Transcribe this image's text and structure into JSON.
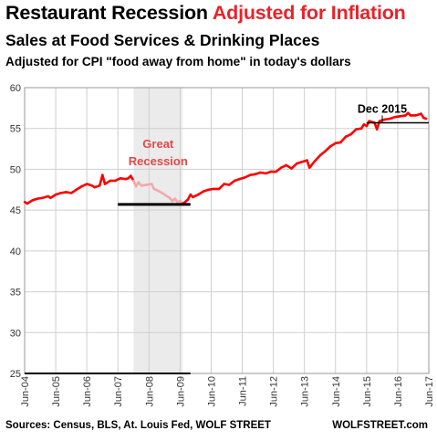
{
  "title": {
    "part1": "Restaurant Recession ",
    "part2": "Adjusted for Inflation"
  },
  "subtitle": "Sales at Food Services & Drinking Places",
  "subtitle2": "Adjusted for CPI \"food away from home\"  in today's dollars",
  "footer": {
    "source": "Sources: Census, BLS, At. Louis Fed, WOLF STREET",
    "brand": "WOLFSTREET.com"
  },
  "colors": {
    "accent": "#e8232a",
    "line": "#ff0000",
    "line_recession": "#f4a8a8",
    "recession_shade": "#ebebeb",
    "recession_label": "#e04a4a"
  },
  "chart_data": {
    "type": "line",
    "ylim": [
      25,
      60
    ],
    "yticks": [
      25,
      30,
      35,
      40,
      45,
      50,
      55,
      60
    ],
    "xlim": [
      2004.417,
      2017.417
    ],
    "xticks": [
      {
        "label": "Jun-04",
        "x": 2004.417
      },
      {
        "label": "Jun-05",
        "x": 2005.417
      },
      {
        "label": "Jun-06",
        "x": 2006.417
      },
      {
        "label": "Jun-07",
        "x": 2007.417
      },
      {
        "label": "Jun-08",
        "x": 2008.417
      },
      {
        "label": "Jun-09",
        "x": 2009.417
      },
      {
        "label": "Jun-10",
        "x": 2010.417
      },
      {
        "label": "Jun-11",
        "x": 2011.417
      },
      {
        "label": "Jun-12",
        "x": 2012.417
      },
      {
        "label": "Jun-13",
        "x": 2013.417
      },
      {
        "label": "Jun-14",
        "x": 2014.417
      },
      {
        "label": "Jun-15",
        "x": 2015.417
      },
      {
        "label": "Jun-16",
        "x": 2016.417
      },
      {
        "label": "Jun-17",
        "x": 2017.417
      }
    ],
    "grid": true,
    "recession": {
      "start": 2007.92,
      "end": 2009.5,
      "label_line1": "Great",
      "label_line2": "Recession"
    },
    "reference_lines": [
      {
        "y": 45.7,
        "x_start": 2007.417,
        "x_end": 2009.75
      },
      {
        "y": 55.7,
        "x_start": 2015.42,
        "x_end": 2017.417
      }
    ],
    "annotation": {
      "text": "Dec 2015",
      "x": 2015.92,
      "y": 55.7
    },
    "series": [
      {
        "points": [
          [
            2004.42,
            46.0
          ],
          [
            2004.5,
            45.8
          ],
          [
            2004.67,
            46.2
          ],
          [
            2004.83,
            46.4
          ],
          [
            2005.0,
            46.5
          ],
          [
            2005.17,
            46.7
          ],
          [
            2005.25,
            46.5
          ],
          [
            2005.42,
            46.9
          ],
          [
            2005.58,
            47.1
          ],
          [
            2005.75,
            47.2
          ],
          [
            2005.92,
            47.1
          ],
          [
            2006.08,
            47.5
          ],
          [
            2006.25,
            47.9
          ],
          [
            2006.42,
            48.2
          ],
          [
            2006.58,
            48.0
          ],
          [
            2006.67,
            47.8
          ],
          [
            2006.83,
            48.0
          ],
          [
            2006.92,
            49.3
          ],
          [
            2007.0,
            48.2
          ],
          [
            2007.17,
            48.6
          ],
          [
            2007.33,
            48.6
          ],
          [
            2007.5,
            48.9
          ],
          [
            2007.67,
            48.8
          ],
          [
            2007.75,
            48.9
          ],
          [
            2007.83,
            49.2
          ],
          [
            2007.92,
            48.6
          ],
          [
            2008.0,
            47.9
          ],
          [
            2008.08,
            48.4
          ],
          [
            2008.17,
            48.0
          ],
          [
            2008.33,
            48.1
          ],
          [
            2008.5,
            48.2
          ],
          [
            2008.58,
            47.6
          ],
          [
            2008.75,
            47.3
          ],
          [
            2008.92,
            46.9
          ],
          [
            2009.08,
            46.5
          ],
          [
            2009.17,
            46.1
          ],
          [
            2009.25,
            46.4
          ],
          [
            2009.33,
            46.0
          ],
          [
            2009.42,
            46.1
          ],
          [
            2009.5,
            45.8
          ],
          [
            2009.58,
            46.0
          ],
          [
            2009.67,
            46.3
          ],
          [
            2009.75,
            46.9
          ],
          [
            2009.83,
            46.6
          ],
          [
            2010.0,
            46.9
          ],
          [
            2010.17,
            47.3
          ],
          [
            2010.33,
            47.5
          ],
          [
            2010.5,
            47.6
          ],
          [
            2010.67,
            47.6
          ],
          [
            2010.83,
            48.2
          ],
          [
            2011.0,
            48.1
          ],
          [
            2011.17,
            48.6
          ],
          [
            2011.33,
            48.8
          ],
          [
            2011.5,
            49.0
          ],
          [
            2011.67,
            49.3
          ],
          [
            2011.83,
            49.4
          ],
          [
            2012.0,
            49.6
          ],
          [
            2012.17,
            49.5
          ],
          [
            2012.33,
            49.7
          ],
          [
            2012.5,
            49.7
          ],
          [
            2012.67,
            50.2
          ],
          [
            2012.83,
            50.5
          ],
          [
            2013.0,
            50.1
          ],
          [
            2013.17,
            50.7
          ],
          [
            2013.33,
            50.9
          ],
          [
            2013.5,
            51.1
          ],
          [
            2013.58,
            50.2
          ],
          [
            2013.75,
            51.0
          ],
          [
            2013.92,
            51.7
          ],
          [
            2014.08,
            52.2
          ],
          [
            2014.25,
            52.8
          ],
          [
            2014.42,
            53.2
          ],
          [
            2014.58,
            53.3
          ],
          [
            2014.75,
            54.0
          ],
          [
            2014.92,
            54.3
          ],
          [
            2015.08,
            54.9
          ],
          [
            2015.25,
            55.0
          ],
          [
            2015.33,
            55.5
          ],
          [
            2015.42,
            55.3
          ],
          [
            2015.5,
            55.9
          ],
          [
            2015.67,
            55.7
          ],
          [
            2015.75,
            54.9
          ],
          [
            2015.83,
            55.9
          ],
          [
            2016.0,
            56.1
          ],
          [
            2016.17,
            56.2
          ],
          [
            2016.33,
            56.4
          ],
          [
            2016.5,
            56.5
          ],
          [
            2016.67,
            56.6
          ],
          [
            2016.75,
            56.9
          ],
          [
            2016.83,
            56.6
          ],
          [
            2017.0,
            56.6
          ],
          [
            2017.17,
            56.8
          ],
          [
            2017.25,
            56.3
          ],
          [
            2017.33,
            56.2
          ]
        ]
      }
    ]
  }
}
